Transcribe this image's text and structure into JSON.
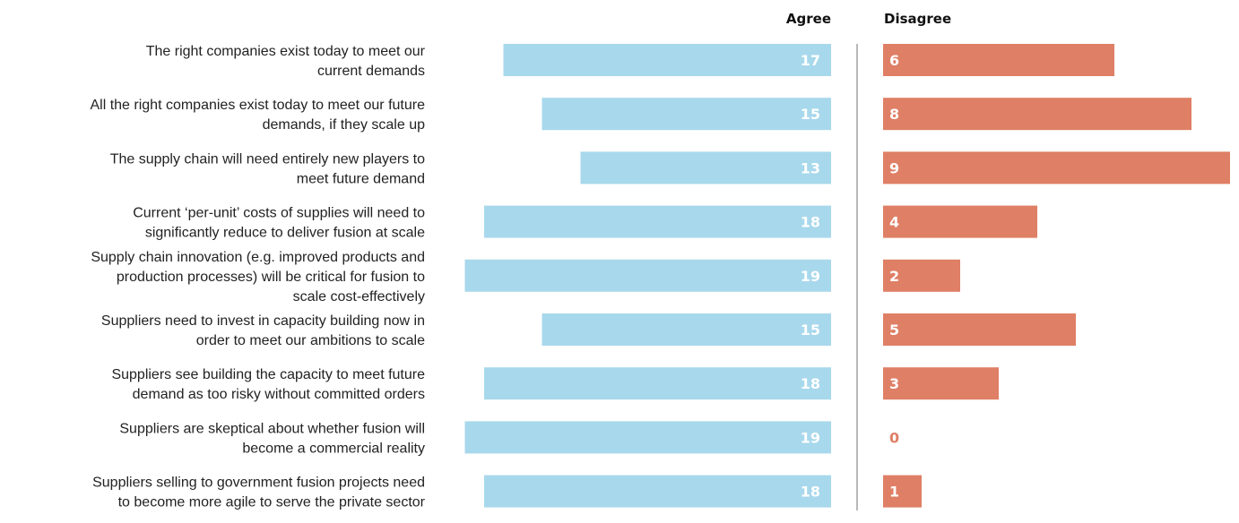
{
  "chart_data": {
    "type": "bar",
    "headers": {
      "agree": "Agree",
      "disagree": "Disagree"
    },
    "categories": [
      [
        "The right companies exist today to meet our",
        "current demands"
      ],
      [
        "All the right companies exist today to meet our future",
        "demands, if they scale up"
      ],
      [
        "The supply chain will need entirely new players to",
        "meet future demand"
      ],
      [
        "Current ‘per-unit’ costs of supplies will need to",
        "significantly reduce to deliver fusion at scale"
      ],
      [
        "Supply chain innovation (e.g. improved products and",
        "production processes) will be critical for fusion to",
        "scale cost-effectively"
      ],
      [
        "Suppliers need to invest in capacity building now in",
        "order to meet our ambitions to scale"
      ],
      [
        "Suppliers see building the capacity to meet future",
        "demand as too risky without committed orders"
      ],
      [
        "Suppliers are skeptical about whether fusion will",
        "become a commercial reality"
      ],
      [
        "Suppliers selling to government fusion projects need",
        "to become more agile to serve the private sector"
      ]
    ],
    "series": [
      {
        "name": "Agree",
        "color": "#a8d8ec",
        "values": [
          17,
          15,
          13,
          18,
          19,
          15,
          18,
          19,
          18
        ]
      },
      {
        "name": "Disagree",
        "color": "#df7f65",
        "values": [
          6,
          8,
          9,
          4,
          2,
          5,
          3,
          0,
          1
        ]
      }
    ],
    "label_colors": {
      "agree": "#ffffff",
      "disagree_inside": "#ffffff",
      "disagree_zero": "#df7f65"
    },
    "divider_color": "#b8b8b8",
    "grid": false,
    "legend": "none"
  }
}
